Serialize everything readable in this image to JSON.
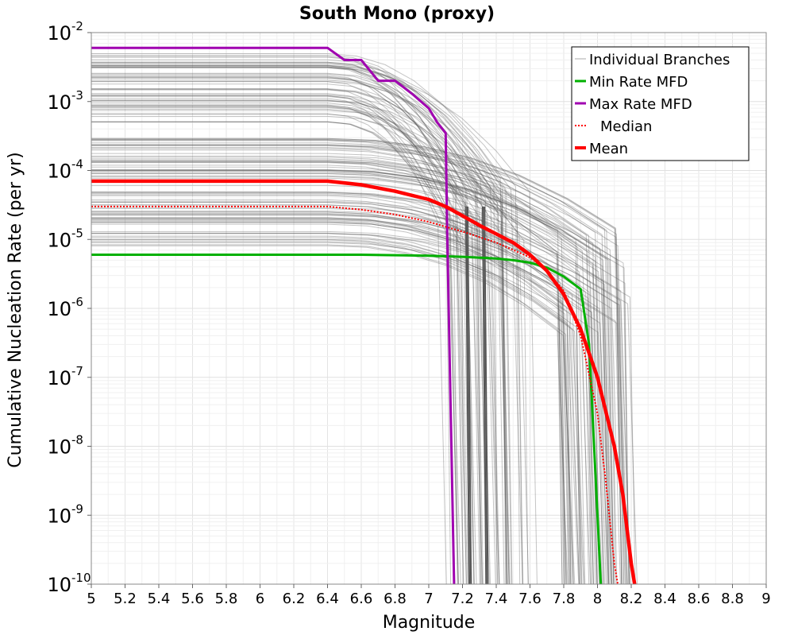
{
  "chart_data": {
    "type": "line",
    "title": "South Mono (proxy)",
    "xlabel": "Magnitude",
    "ylabel": "Cumulative Nucleation Rate (per yr)",
    "xlim": [
      5,
      9
    ],
    "ylim": [
      1e-10,
      0.01
    ],
    "y_scale": "log",
    "grid": true,
    "legend_position": "top-right",
    "x_ticks": [
      "5",
      "5.2",
      "5.4",
      "5.6",
      "5.8",
      "6",
      "6.2",
      "6.4",
      "6.6",
      "6.8",
      "7",
      "7.2",
      "7.4",
      "7.6",
      "7.8",
      "8",
      "8.2",
      "8.4",
      "8.6",
      "8.8",
      "9"
    ],
    "y_ticks": [
      {
        "base": "10",
        "exp": "-2",
        "value": 0.01
      },
      {
        "base": "10",
        "exp": "-3",
        "value": 0.001
      },
      {
        "base": "10",
        "exp": "-4",
        "value": 0.0001
      },
      {
        "base": "10",
        "exp": "-5",
        "value": 1e-05
      },
      {
        "base": "10",
        "exp": "-6",
        "value": 1e-06
      },
      {
        "base": "10",
        "exp": "-7",
        "value": 1e-07
      },
      {
        "base": "10",
        "exp": "-8",
        "value": 1e-08
      },
      {
        "base": "10",
        "exp": "-9",
        "value": 1e-09
      },
      {
        "base": "10",
        "exp": "-10",
        "value": 1e-10
      }
    ],
    "series": [
      {
        "name": "Min Rate MFD",
        "color": "#00b000",
        "style": "solid",
        "x": [
          5.0,
          6.6,
          6.8,
          7.0,
          7.2,
          7.4,
          7.5,
          7.6,
          7.7,
          7.8,
          7.9,
          7.95,
          8.0,
          8.02
        ],
        "y": [
          6e-06,
          6e-06,
          5.9e-06,
          5.8e-06,
          5.6e-06,
          5.3e-06,
          5e-06,
          4.6e-06,
          3.9e-06,
          2.9e-06,
          1.9e-06,
          3e-07,
          1e-09,
          1e-10
        ]
      },
      {
        "name": "Max Rate MFD",
        "color": "#a000b0",
        "style": "solid",
        "x": [
          5.0,
          6.4,
          6.5,
          6.6,
          6.7,
          6.8,
          6.9,
          7.0,
          7.05,
          7.1,
          7.11,
          7.15
        ],
        "y": [
          0.006,
          0.006,
          0.004,
          0.004,
          0.002,
          0.002,
          0.0013,
          0.0008,
          0.0005,
          0.00035,
          1e-05,
          1e-10
        ]
      },
      {
        "name": "Median",
        "color": "#ff0000",
        "style": "dotted",
        "x": [
          5.0,
          6.4,
          6.6,
          6.8,
          7.0,
          7.2,
          7.4,
          7.6,
          7.7,
          7.8,
          7.9,
          8.0,
          8.05,
          8.1,
          8.12
        ],
        "y": [
          3e-05,
          3e-05,
          2.7e-05,
          2.3e-05,
          1.8e-05,
          1.3e-05,
          9e-06,
          5.5e-06,
          3.5e-06,
          1.8e-06,
          4e-07,
          3e-08,
          3e-09,
          2e-10,
          1e-10
        ]
      },
      {
        "name": "Mean",
        "color": "#ff0000",
        "style": "thick",
        "x": [
          5.0,
          6.4,
          6.6,
          6.8,
          7.0,
          7.1,
          7.2,
          7.3,
          7.4,
          7.5,
          7.6,
          7.7,
          7.8,
          7.9,
          8.0,
          8.1,
          8.15,
          8.2,
          8.22
        ],
        "y": [
          7e-05,
          7e-05,
          6.2e-05,
          5e-05,
          3.8e-05,
          3e-05,
          2.2e-05,
          1.6e-05,
          1.2e-05,
          9e-06,
          6e-06,
          3.5e-06,
          1.6e-06,
          5e-07,
          1e-07,
          1e-08,
          2e-09,
          2e-10,
          1e-10
        ]
      }
    ],
    "branch_band": {
      "name": "Individual Branches",
      "color": "#555555",
      "count": 140,
      "upper_plateau_range": [
        0.0005,
        0.005
      ],
      "lower_plateau_range": [
        8e-06,
        0.0003
      ]
    },
    "legend": [
      {
        "label": "Individual Branches",
        "color": "#aaaaaa",
        "style": "thin"
      },
      {
        "label": "Min Rate MFD",
        "color": "#00b000",
        "style": "solid"
      },
      {
        "label": "Max Rate MFD",
        "color": "#a000b0",
        "style": "solid"
      },
      {
        "label": "Median",
        "color": "#ff0000",
        "style": "dotted"
      },
      {
        "label": "Mean",
        "color": "#ff0000",
        "style": "thick"
      }
    ]
  }
}
